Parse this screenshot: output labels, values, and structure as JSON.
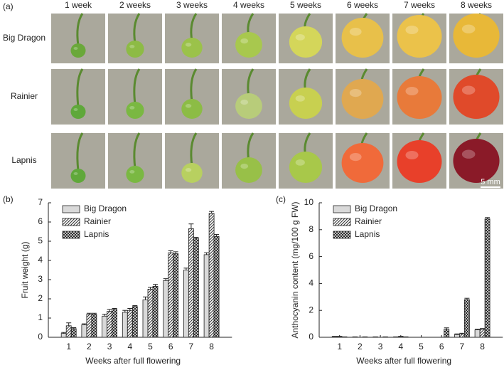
{
  "panel_a": {
    "label": "(a)",
    "columns": [
      "1 week",
      "2 weeks",
      "3 weeks",
      "4 weeks",
      "5 weeks",
      "6 weeks",
      "7 weeks",
      "8 weeks"
    ],
    "rows": [
      "Big Dragon",
      "Rainier",
      "Lapnis"
    ],
    "scale_bar": "5 mm"
  },
  "chart_data": [
    {
      "type": "bar",
      "label": "(b)",
      "xlabel": "Weeks after full flowering",
      "ylabel": "Fruit weight (g)",
      "categories": [
        "1",
        "2",
        "3",
        "4",
        "5",
        "6",
        "7",
        "8"
      ],
      "ylim": [
        0,
        7
      ],
      "yticks": [
        0,
        1,
        2,
        3,
        4,
        5,
        6,
        7
      ],
      "series": [
        {
          "name": "Big Dragon",
          "color": "#d9d9d9",
          "pattern": "solid",
          "values": [
            0.2,
            0.65,
            1.1,
            1.3,
            1.95,
            2.95,
            3.5,
            4.3
          ],
          "errors": [
            0.05,
            0.05,
            0.1,
            0.1,
            0.15,
            0.1,
            0.1,
            0.1
          ]
        },
        {
          "name": "Rainier",
          "color": "#555555",
          "pattern": "diagonal",
          "values": [
            0.6,
            1.2,
            1.35,
            1.4,
            2.5,
            4.4,
            5.65,
            6.45
          ],
          "errors": [
            0.15,
            0.05,
            0.1,
            0.1,
            0.1,
            0.1,
            0.25,
            0.1
          ]
        },
        {
          "name": "Lapnis",
          "color": "#333333",
          "pattern": "crosshatch",
          "values": [
            0.45,
            1.2,
            1.45,
            1.6,
            2.65,
            4.35,
            5.15,
            5.25
          ],
          "errors": [
            0.05,
            0.05,
            0.05,
            0.05,
            0.1,
            0.1,
            0.05,
            0.1
          ]
        }
      ]
    },
    {
      "type": "bar",
      "label": "(c)",
      "xlabel": "Weeks after full flowering",
      "ylabel": "Anthocyanin content (mg/100 g FW)",
      "categories": [
        "1",
        "2",
        "3",
        "4",
        "5",
        "6",
        "7",
        "8"
      ],
      "ylim": [
        0,
        10
      ],
      "yticks": [
        0,
        2,
        4,
        6,
        8,
        10
      ],
      "series": [
        {
          "name": "Big Dragon",
          "color": "#d9d9d9",
          "pattern": "solid",
          "values": [
            0.05,
            0.02,
            0.02,
            0.02,
            0,
            0,
            0.2,
            0.55
          ],
          "errors": [
            0.02,
            0.01,
            0.01,
            0.01,
            0,
            0,
            0.05,
            0.05
          ]
        },
        {
          "name": "Rainier",
          "color": "#555555",
          "pattern": "diagonal",
          "values": [
            0.05,
            0,
            0,
            0.05,
            0,
            0,
            0.25,
            0.6
          ],
          "errors": [
            0.02,
            0,
            0,
            0.02,
            0,
            0,
            0.05,
            0.05
          ]
        },
        {
          "name": "Lapnis",
          "color": "#333333",
          "pattern": "crosshatch",
          "values": [
            0.02,
            0.02,
            0.02,
            0.02,
            0,
            0.6,
            2.8,
            8.8
          ],
          "errors": [
            0.01,
            0.01,
            0.01,
            0.01,
            0,
            0.1,
            0.1,
            0.1
          ]
        }
      ]
    }
  ]
}
